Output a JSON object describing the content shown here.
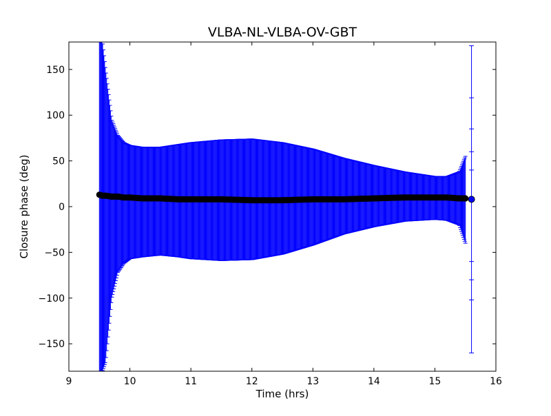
{
  "chart_data": {
    "type": "scatter",
    "title": "VLBA-NL-VLBA-OV-GBT",
    "xlabel": "Time (hrs)",
    "ylabel": "Closure phase (deg)",
    "xlim": [
      9,
      16
    ],
    "ylim": [
      -180,
      180
    ],
    "xticks": [
      9,
      10,
      11,
      12,
      13,
      14,
      15,
      16
    ],
    "yticks": [
      -150,
      -100,
      -50,
      0,
      50,
      100,
      150
    ],
    "xtick_labels": [
      "9",
      "10",
      "11",
      "12",
      "13",
      "14",
      "15",
      "16"
    ],
    "ytick_labels": [
      "−150",
      "−100",
      "−50",
      "0",
      "50",
      "100",
      "150"
    ],
    "grid": false,
    "legend": "none",
    "marker_color": "#000000",
    "errorbar_color": "#0000ff",
    "series": [
      {
        "x": [
          9.5,
          9.55,
          9.6,
          9.7,
          9.8,
          9.9,
          10.0,
          10.2,
          10.5,
          10.8,
          11.0,
          11.5,
          12.0,
          12.5,
          13.0,
          13.5,
          14.0,
          14.5,
          15.0,
          15.2,
          15.4,
          15.5,
          15.6
        ],
        "y": [
          13,
          12,
          12,
          11,
          11,
          10,
          10,
          9,
          9,
          8,
          8,
          8,
          7,
          7,
          8,
          8,
          9,
          10,
          10,
          10,
          9,
          9,
          8
        ],
        "yerr_upper": [
          180,
          180,
          150,
          95,
          78,
          70,
          67,
          65,
          65,
          68,
          70,
          73,
          74,
          70,
          63,
          53,
          45,
          38,
          33,
          33,
          38,
          55,
          176
        ],
        "yerr_lower": [
          -180,
          -180,
          -170,
          -100,
          -72,
          -62,
          -57,
          -55,
          -53,
          -55,
          -57,
          -59,
          -58,
          -52,
          -42,
          -30,
          -22,
          -16,
          -14,
          -15,
          -20,
          -40,
          -160
        ]
      }
    ]
  }
}
